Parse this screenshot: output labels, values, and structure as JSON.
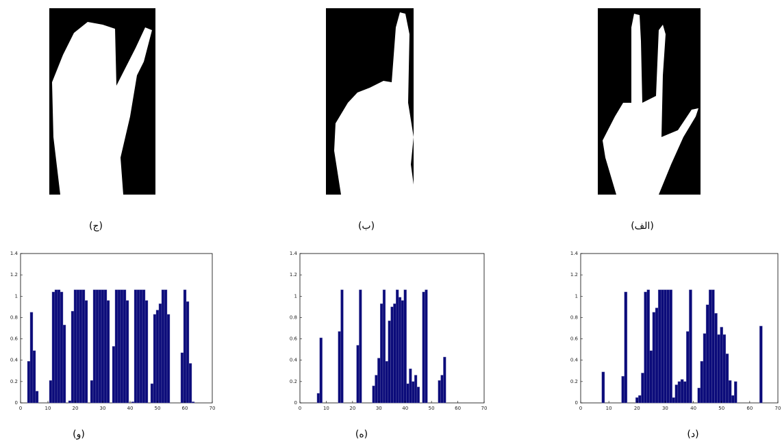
{
  "image_captions": [
    "(ج)",
    "(ب)",
    "(الف)"
  ],
  "chart_data": [
    {
      "type": "bar",
      "caption": "(و)",
      "color": "#0b0b7a",
      "x": [
        3,
        4,
        5,
        6,
        11,
        12,
        13,
        14,
        15,
        16,
        18,
        19,
        20,
        21,
        22,
        23,
        24,
        26,
        27,
        28,
        29,
        30,
        31,
        32,
        34,
        35,
        36,
        37,
        38,
        39,
        41,
        42,
        43,
        44,
        45,
        46,
        48,
        49,
        50,
        51,
        52,
        53,
        54,
        59,
        60,
        61,
        62,
        63
      ],
      "values": [
        0.39,
        0.85,
        0.49,
        0.11,
        0.21,
        1.04,
        1.06,
        1.06,
        1.04,
        0.73,
        0.02,
        0.86,
        1.06,
        1.06,
        1.06,
        1.06,
        0.96,
        0.21,
        1.06,
        1.06,
        1.06,
        1.06,
        1.06,
        0.96,
        0.53,
        1.06,
        1.06,
        1.06,
        1.06,
        0.96,
        0.01,
        1.06,
        1.06,
        1.06,
        1.06,
        0.96,
        0.18,
        0.83,
        0.87,
        0.93,
        1.06,
        1.06,
        0.83,
        0.47,
        1.06,
        0.95,
        0.37,
        0.01
      ],
      "xlim": [
        0,
        70
      ],
      "ylim": [
        0,
        1.4
      ],
      "xticks": [
        0,
        10,
        20,
        30,
        40,
        50,
        60,
        70
      ],
      "yticks": [
        0,
        0.2,
        0.4,
        0.6,
        0.8,
        1,
        1.2,
        1.4
      ]
    },
    {
      "type": "bar",
      "caption": "(ه)",
      "color": "#0b0b7a",
      "x": [
        7,
        8,
        15,
        16,
        22,
        23,
        28,
        29,
        30,
        31,
        32,
        33,
        34,
        35,
        36,
        37,
        38,
        39,
        40,
        41,
        42,
        43,
        44,
        45,
        47,
        48,
        53,
        54,
        55
      ],
      "values": [
        0.09,
        0.61,
        0.67,
        1.06,
        0.54,
        1.06,
        0.16,
        0.26,
        0.42,
        0.93,
        1.06,
        0.39,
        0.77,
        0.9,
        0.93,
        1.06,
        0.99,
        0.96,
        1.06,
        0.18,
        0.32,
        0.2,
        0.26,
        0.15,
        1.04,
        1.06,
        0.21,
        0.26,
        0.43
      ],
      "xlim": [
        0,
        70
      ],
      "ylim": [
        0,
        1.4
      ],
      "xticks": [
        0,
        10,
        20,
        30,
        40,
        50,
        60,
        70
      ],
      "yticks": [
        0,
        0.2,
        0.4,
        0.6,
        0.8,
        1,
        1.2,
        1.4
      ]
    },
    {
      "type": "bar",
      "caption": "(د)",
      "color": "#0b0b7a",
      "x": [
        8,
        15,
        16,
        20,
        21,
        22,
        23,
        24,
        25,
        26,
        27,
        28,
        29,
        30,
        31,
        32,
        33,
        34,
        35,
        36,
        37,
        38,
        39,
        42,
        43,
        44,
        45,
        46,
        47,
        48,
        49,
        50,
        51,
        52,
        53,
        54,
        55,
        64
      ],
      "values": [
        0.29,
        0.25,
        1.04,
        0.05,
        0.07,
        0.28,
        1.04,
        1.06,
        0.49,
        0.85,
        0.89,
        1.06,
        1.06,
        1.06,
        1.06,
        1.06,
        0.05,
        0.17,
        0.2,
        0.22,
        0.2,
        0.67,
        1.06,
        0.14,
        0.39,
        0.65,
        0.92,
        1.06,
        1.06,
        0.84,
        0.64,
        0.71,
        0.64,
        0.46,
        0.21,
        0.07,
        0.2,
        0.72
      ],
      "xlim": [
        0,
        70
      ],
      "ylim": [
        0,
        1.4
      ],
      "xticks": [
        0,
        10,
        20,
        30,
        40,
        50,
        60,
        70
      ],
      "yticks": [
        0,
        0.2,
        0.4,
        0.6,
        0.8,
        1,
        1.2,
        1.4
      ]
    }
  ]
}
